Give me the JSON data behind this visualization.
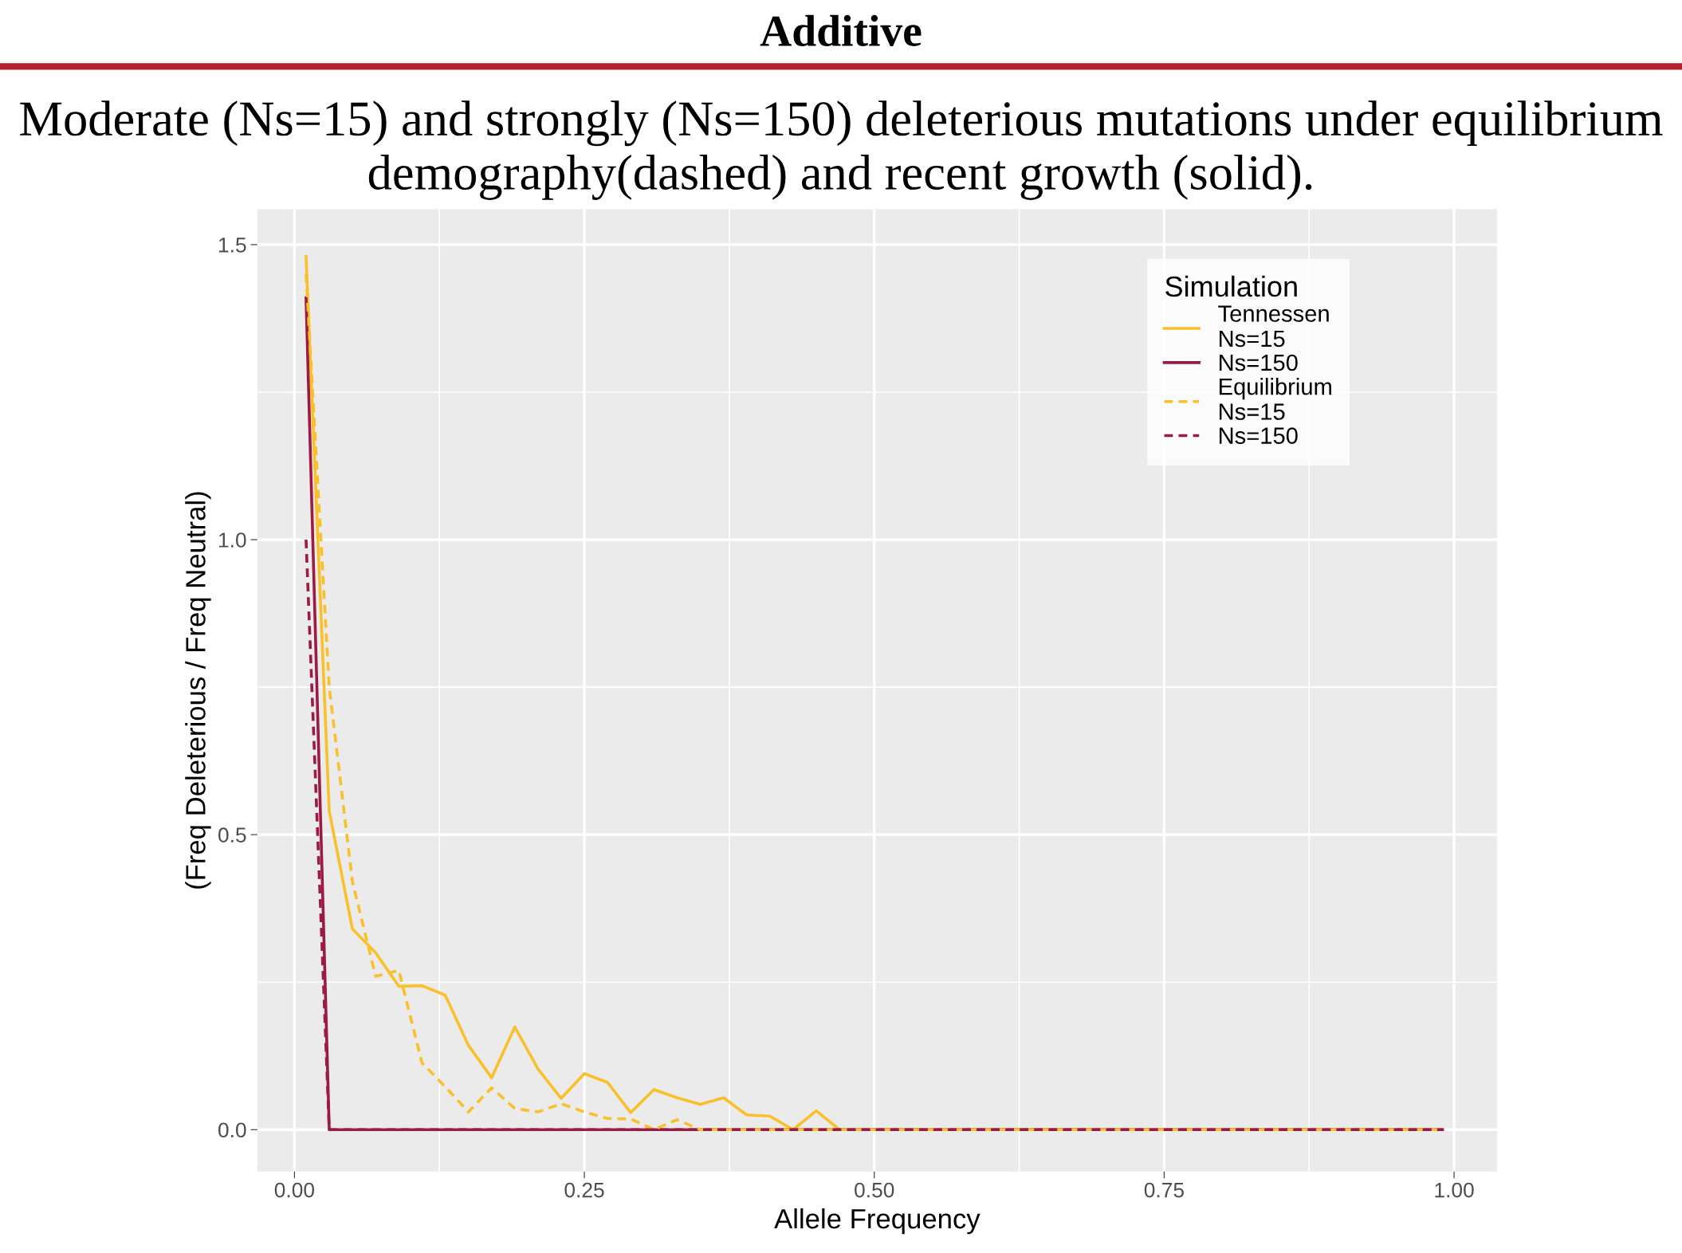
{
  "chart_data": {
    "type": "line",
    "title": "Additive",
    "subtitle": "Moderate (Ns=15) and strongly (Ns=150) deleterious mutations under equilibrium demography(dashed) and recent growth (solid).",
    "xlabel": "Allele Frequency",
    "ylabel": "(Freq Deleterious / Freq Neutral)",
    "legend_title": "Simulation",
    "x": [
      0.01,
      0.03,
      0.05,
      0.07,
      0.09,
      0.11,
      0.13,
      0.15,
      0.17,
      0.19,
      0.21,
      0.23,
      0.25,
      0.27,
      0.29,
      0.31,
      0.33,
      0.35,
      0.37,
      0.39,
      0.41,
      0.43,
      0.45,
      0.47,
      0.49,
      0.51,
      0.53,
      0.55,
      0.57,
      0.59,
      0.61,
      0.63,
      0.65,
      0.67,
      0.69,
      0.71,
      0.73,
      0.75,
      0.77,
      0.79,
      0.81,
      0.83,
      0.85,
      0.87,
      0.89,
      0.91,
      0.93,
      0.95,
      0.97,
      0.99
    ],
    "series": [
      {
        "name": "Tennessen\nNs=15",
        "color": "#f9c02b",
        "line_style": "solid",
        "values": [
          1.48,
          0.54,
          0.34,
          0.3,
          0.243,
          0.244,
          0.228,
          0.143,
          0.088,
          0.174,
          0.103,
          0.053,
          0.095,
          0.08,
          0.029,
          0.068,
          0.054,
          0.043,
          0.054,
          0.025,
          0.023,
          0,
          0.032,
          0,
          0,
          0,
          0,
          0,
          0,
          0,
          0,
          0,
          0,
          0,
          0,
          0,
          0,
          0,
          0,
          0,
          0,
          0,
          0,
          0,
          0,
          0,
          0,
          0,
          0,
          0
        ]
      },
      {
        "name": "Ns=150",
        "color": "#9b1b45",
        "line_style": "solid",
        "values": [
          1.41,
          0,
          0,
          0,
          0,
          0,
          0,
          0,
          0,
          0,
          0,
          0,
          0,
          0,
          0,
          0,
          0,
          0,
          0,
          0,
          0,
          0,
          0,
          0,
          0,
          0,
          0,
          0,
          0,
          0,
          0,
          0,
          0,
          0,
          0,
          0,
          0,
          0,
          0,
          0,
          0,
          0,
          0,
          0,
          0,
          0,
          0,
          0,
          0,
          0
        ]
      },
      {
        "name": "Equilibrium\nNs=15",
        "color": "#f9c02b",
        "line_style": "dashed",
        "values": [
          1.45,
          0.75,
          0.42,
          0.26,
          0.27,
          0.113,
          0.073,
          0.03,
          0.071,
          0.036,
          0.03,
          0.044,
          0.03,
          0.019,
          0.018,
          0,
          0.017,
          0,
          0,
          0,
          0,
          0,
          0,
          0,
          0,
          0,
          0,
          0,
          0,
          0,
          0,
          0,
          0,
          0,
          0,
          0,
          0,
          0,
          0,
          0,
          0,
          0,
          0,
          0,
          0,
          0,
          0,
          0,
          0,
          0
        ]
      },
      {
        "name": "Ns=150",
        "color": "#9b1b45",
        "line_style": "dashed",
        "values": [
          1.0,
          0,
          0,
          0,
          0,
          0,
          0,
          0,
          0,
          0,
          0,
          0,
          0,
          0,
          0,
          0,
          0,
          0,
          0,
          0,
          0,
          0,
          0,
          0,
          0,
          0,
          0,
          0,
          0,
          0,
          0,
          0,
          0,
          0,
          0,
          0,
          0,
          0,
          0,
          0,
          0,
          0,
          0,
          0,
          0,
          0,
          0,
          0,
          0,
          0
        ]
      }
    ],
    "xlim": [
      -0.032,
      1.037
    ],
    "ylim": [
      -0.071,
      1.56
    ],
    "xticks": [
      {
        "value": 0,
        "label": "0.00"
      },
      {
        "value": 0.25,
        "label": "0.25"
      },
      {
        "value": 0.5,
        "label": "0.50"
      },
      {
        "value": 0.75,
        "label": "0.75"
      },
      {
        "value": 1,
        "label": "1.00"
      }
    ],
    "yticks": [
      {
        "value": 0,
        "label": "0.0"
      },
      {
        "value": 0.5,
        "label": "0.5"
      },
      {
        "value": 1,
        "label": "1.0"
      },
      {
        "value": 1.5,
        "label": "1.5"
      }
    ],
    "grid": true,
    "legend": "top right",
    "marker": "none"
  }
}
